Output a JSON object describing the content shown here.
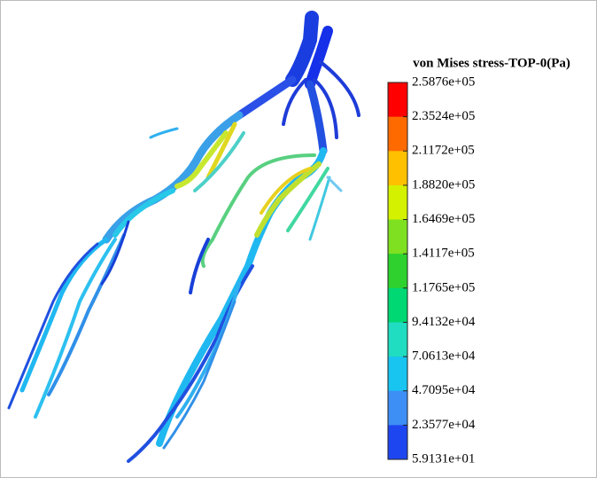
{
  "colorbar": {
    "title": "von Mises stress-TOP-0(Pa)",
    "ticks": [
      "2.5876e+05",
      "2.3524e+05",
      "2.1172e+05",
      "1.8820e+05",
      "1.6469e+05",
      "1.4117e+05",
      "1.1765e+05",
      "9.4132e+04",
      "7.0613e+04",
      "4.7095e+04",
      "2.3577e+04",
      "5.9131e+01"
    ],
    "colors": [
      "#ff0000",
      "#ff6a00",
      "#ffc000",
      "#d4f200",
      "#7ee020",
      "#2ed12e",
      "#00d873",
      "#20dcc0",
      "#18c4f0",
      "#3d8ef5",
      "#1e46f0"
    ]
  }
}
